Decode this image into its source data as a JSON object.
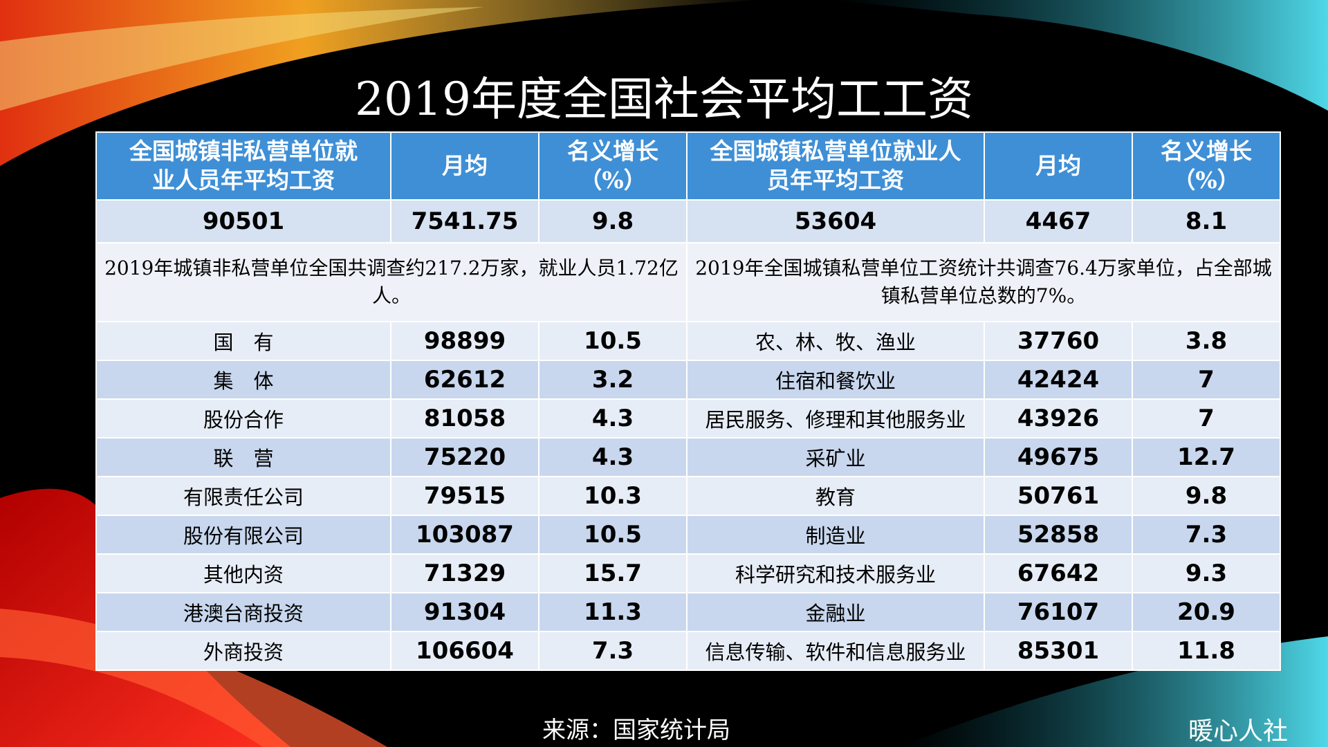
{
  "title": "2019年度全国社会平均工工资",
  "table": {
    "header": [
      "全国城镇非私营单位就\n业人员年平均工资",
      "月均",
      "名义增长\n（%）",
      "全国城镇私营单位就业人\n员年平均工资",
      "月均",
      "名义增长\n（%）"
    ],
    "summary": [
      "90501",
      "7541.75",
      "9.8",
      "53604",
      "4467",
      "8.1"
    ],
    "notes": [
      "2019年城镇非私营单位全国共调查约217.2万家，就业人员1.72亿人。",
      "2019年全国城镇私营单位工资统计共调查76.4万家单位，占全部城镇私营单位总数的7%。"
    ],
    "rows": [
      [
        "国　有",
        "98899",
        "10.5",
        "农、林、牧、渔业",
        "37760",
        "3.8"
      ],
      [
        "集　体",
        "62612",
        "3.2",
        "住宿和餐饮业",
        "42424",
        "7"
      ],
      [
        "股份合作",
        "81058",
        "4.3",
        "居民服务、修理和其他服务业",
        "43926",
        "7"
      ],
      [
        "联　营",
        "75220",
        "4.3",
        "采矿业",
        "49675",
        "12.7"
      ],
      [
        "有限责任公司",
        "79515",
        "10.3",
        "教育",
        "50761",
        "9.8"
      ],
      [
        "股份有限公司",
        "103087",
        "10.5",
        "制造业",
        "52858",
        "7.3"
      ],
      [
        "其他内资",
        "71329",
        "15.7",
        "科学研究和技术服务业",
        "67642",
        "9.3"
      ],
      [
        "港澳台商投资",
        "91304",
        "11.3",
        "金融业",
        "76107",
        "20.9"
      ],
      [
        "外商投资",
        "106604",
        "7.3",
        "信息传输、软件和信息服务业",
        "85301",
        "11.8"
      ]
    ]
  },
  "source": "来源：国家统计局",
  "brand": "暖心人社"
}
